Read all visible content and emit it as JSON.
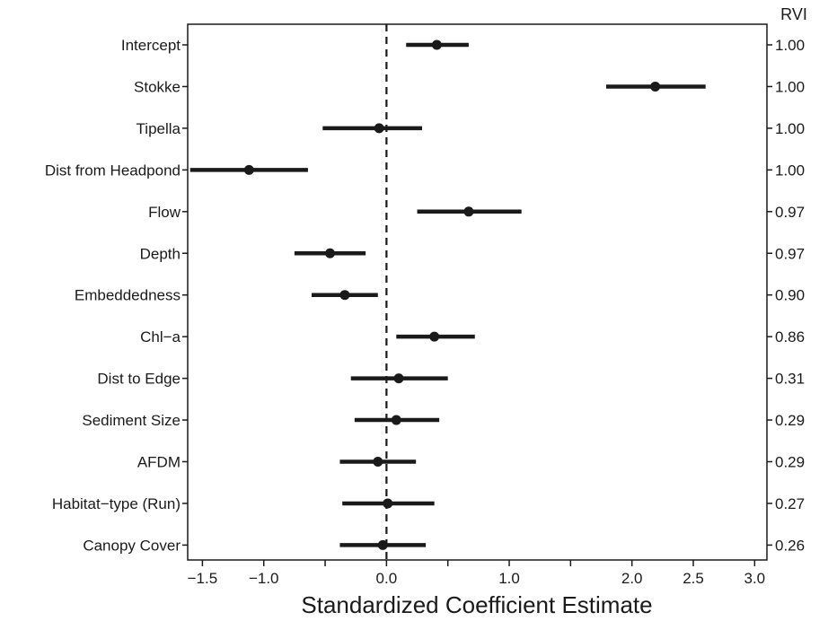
{
  "chart_data": {
    "type": "forest",
    "title": "",
    "xlabel": "Standardized Coefficient Estimate",
    "ylabel": "",
    "right_axis_label": "RVI",
    "xlim": [
      -1.62,
      3.1
    ],
    "xticks": [
      -1.5,
      -1.0,
      -0.5,
      0.0,
      0.5,
      1.0,
      1.5,
      2.0,
      2.5,
      3.0
    ],
    "xtick_labels": [
      "−1.5",
      "−1.0",
      "",
      "0.0",
      "",
      "1.0",
      "",
      "2.0",
      "2.5",
      "3.0"
    ],
    "reference_line": 0,
    "grid": false,
    "legend": "none",
    "colors": {
      "marks": "#1a1a1a",
      "reference_line": "#1a1a1a",
      "background": "#ffffff"
    },
    "variables": [
      {
        "label": "Intercept",
        "estimate": 0.41,
        "lower": 0.16,
        "upper": 0.67,
        "rvi": "1.00"
      },
      {
        "label": "Stokke",
        "estimate": 2.19,
        "lower": 1.79,
        "upper": 2.6,
        "rvi": "1.00"
      },
      {
        "label": "Tipella",
        "estimate": -0.06,
        "lower": -0.52,
        "upper": 0.29,
        "rvi": "1.00"
      },
      {
        "label": "Dist from Headpond",
        "estimate": -1.12,
        "lower": -1.6,
        "upper": -0.64,
        "rvi": "1.00"
      },
      {
        "label": "Flow",
        "estimate": 0.67,
        "lower": 0.25,
        "upper": 1.1,
        "rvi": "0.97"
      },
      {
        "label": "Depth",
        "estimate": -0.46,
        "lower": -0.75,
        "upper": -0.17,
        "rvi": "0.97"
      },
      {
        "label": "Embeddedness",
        "estimate": -0.34,
        "lower": -0.61,
        "upper": -0.07,
        "rvi": "0.90"
      },
      {
        "label": "Chl−a",
        "estimate": 0.39,
        "lower": 0.08,
        "upper": 0.72,
        "rvi": "0.86"
      },
      {
        "label": "Dist to Edge",
        "estimate": 0.1,
        "lower": -0.29,
        "upper": 0.5,
        "rvi": "0.31"
      },
      {
        "label": "Sediment Size",
        "estimate": 0.08,
        "lower": -0.26,
        "upper": 0.43,
        "rvi": "0.29"
      },
      {
        "label": "AFDM",
        "estimate": -0.07,
        "lower": -0.38,
        "upper": 0.24,
        "rvi": "0.29"
      },
      {
        "label": "Habitat−type (Run)",
        "estimate": 0.01,
        "lower": -0.36,
        "upper": 0.39,
        "rvi": "0.27"
      },
      {
        "label": "Canopy Cover",
        "estimate": -0.03,
        "lower": -0.38,
        "upper": 0.32,
        "rvi": "0.26"
      }
    ]
  }
}
